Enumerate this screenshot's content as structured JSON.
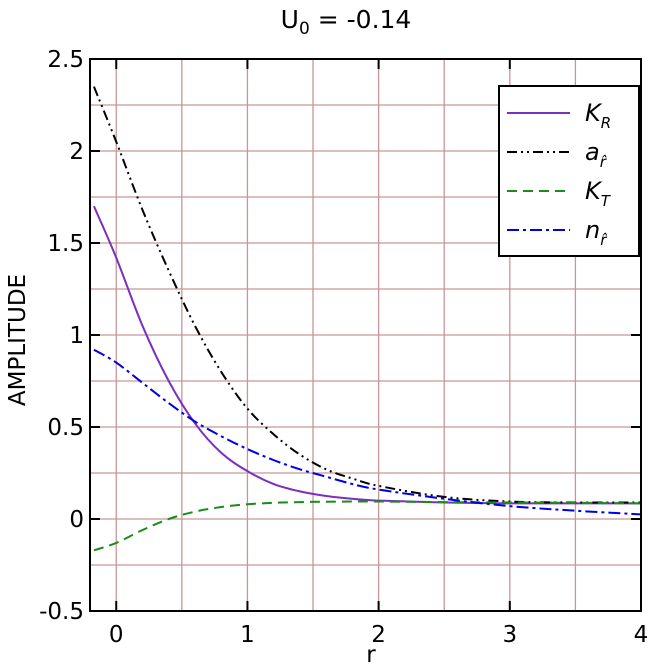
{
  "chart_data": {
    "type": "line",
    "title": "U",
    "title_subscript": "0",
    "title_suffix": " = -0.14",
    "xlabel": "r",
    "ylabel": "AMPLITUDE",
    "xlim": [
      -0.2,
      4.0
    ],
    "ylim": [
      -0.5,
      2.5
    ],
    "xticks": [
      0,
      1,
      2,
      3,
      4
    ],
    "xtick_labels": [
      "0",
      "1",
      "2",
      "3",
      "4"
    ],
    "yticks": [
      -0.5,
      0,
      0.5,
      1,
      1.5,
      2,
      2.5
    ],
    "ytick_labels": [
      "-0.5",
      "0",
      "0.5",
      "1",
      "1.5",
      "2",
      "2.5"
    ],
    "grid": true,
    "grid_color": "#c89696",
    "legend_position": "top-right",
    "series": [
      {
        "name": "K",
        "name_subscript": "R",
        "color": "#7b2fbf",
        "dash": "solid",
        "x": [
          -0.17,
          0.0,
          0.2,
          0.4,
          0.6,
          0.8,
          1.0,
          1.2,
          1.4,
          1.6,
          1.8,
          2.0,
          2.5,
          3.0,
          3.5,
          4.0
        ],
        "y": [
          1.7,
          1.42,
          1.05,
          0.75,
          0.52,
          0.36,
          0.26,
          0.19,
          0.15,
          0.125,
          0.11,
          0.1,
          0.09,
          0.085,
          0.085,
          0.085
        ]
      },
      {
        "name": "a",
        "name_subscript": "r̂",
        "color": "#000000",
        "dash": "dash-dot-dot",
        "x": [
          -0.17,
          0.0,
          0.2,
          0.4,
          0.6,
          0.8,
          1.0,
          1.2,
          1.4,
          1.6,
          1.8,
          2.0,
          2.5,
          3.0,
          3.5,
          4.0
        ],
        "y": [
          2.35,
          2.05,
          1.68,
          1.35,
          1.05,
          0.8,
          0.6,
          0.46,
          0.35,
          0.27,
          0.22,
          0.18,
          0.12,
          0.095,
          0.09,
          0.09
        ]
      },
      {
        "name": "K",
        "name_subscript": "T",
        "color": "#1a8c1a",
        "dash": "dashed",
        "x": [
          -0.17,
          0.0,
          0.2,
          0.4,
          0.6,
          0.8,
          1.0,
          1.2,
          1.4,
          1.6,
          1.8,
          2.0,
          2.5,
          3.0,
          3.5,
          4.0
        ],
        "y": [
          -0.17,
          -0.13,
          -0.06,
          0.0,
          0.04,
          0.065,
          0.08,
          0.088,
          0.092,
          0.094,
          0.095,
          0.095,
          0.092,
          0.09,
          0.088,
          0.085
        ]
      },
      {
        "name": "n",
        "name_subscript": "r̂",
        "color": "#0000e6",
        "dash": "dash-dot",
        "x": [
          -0.17,
          0.0,
          0.2,
          0.4,
          0.6,
          0.8,
          1.0,
          1.2,
          1.4,
          1.6,
          1.8,
          2.0,
          2.5,
          3.0,
          3.5,
          4.0
        ],
        "y": [
          0.92,
          0.85,
          0.74,
          0.63,
          0.53,
          0.45,
          0.38,
          0.32,
          0.27,
          0.23,
          0.19,
          0.16,
          0.11,
          0.07,
          0.045,
          0.025
        ]
      }
    ]
  }
}
